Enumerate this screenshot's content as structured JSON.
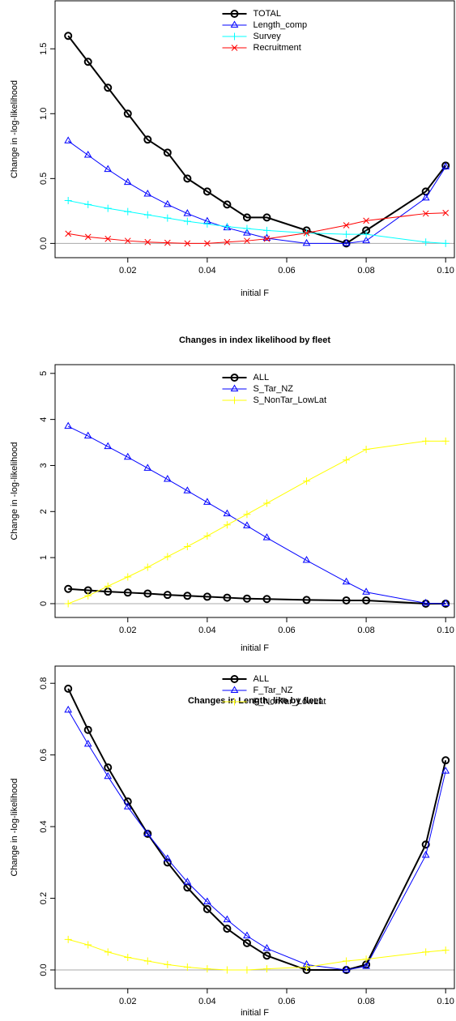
{
  "chart_data": [
    {
      "type": "line",
      "x_label": "initial F",
      "y_label": "Change in -log-likelihood",
      "x": [
        0.005,
        0.01,
        0.015,
        0.02,
        0.025,
        0.03,
        0.035,
        0.04,
        0.045,
        0.05,
        0.055,
        0.065,
        0.075,
        0.08,
        0.095,
        0.1
      ],
      "xlim": [
        0.0017,
        0.1022
      ],
      "xticks": [
        0.02,
        0.04,
        0.06,
        0.08,
        {
          "value": 0.1,
          "label": "0.10"
        }
      ],
      "ylim": [
        -0.11,
        1.87
      ],
      "yticks": [
        {
          "value": 0,
          "label": "0.0"
        },
        0.5,
        {
          "value": 1,
          "label": "1.0"
        },
        1.5
      ],
      "legend": "top",
      "series": [
        {
          "name": "TOTAL",
          "color": "#000000",
          "marker": "circle",
          "line_width": 2,
          "values": [
            1.6,
            1.4,
            1.2,
            1.0,
            0.8,
            0.7,
            0.5,
            0.4,
            0.3,
            0.2,
            0.2,
            0.1,
            0.0,
            0.1,
            0.4,
            0.6
          ]
        },
        {
          "name": "Length_comp",
          "color": "#0000ff",
          "marker": "triangle",
          "line_width": 1,
          "values": [
            0.79,
            0.68,
            0.57,
            0.47,
            0.38,
            0.3,
            0.23,
            0.17,
            0.12,
            0.08,
            0.04,
            0.0,
            0.0,
            0.02,
            0.35,
            0.59
          ]
        },
        {
          "name": "Survey",
          "color": "#00ffff",
          "marker": "plus",
          "line_width": 1,
          "values": [
            0.33,
            0.3,
            0.27,
            0.245,
            0.22,
            0.195,
            0.17,
            0.15,
            0.13,
            0.115,
            0.1,
            0.08,
            0.07,
            0.07,
            0.01,
            0.0
          ]
        },
        {
          "name": "Recruitment",
          "color": "#ff0000",
          "marker": "cross",
          "line_width": 1,
          "values": [
            0.075,
            0.05,
            0.035,
            0.02,
            0.01,
            0.005,
            0.0,
            0.0,
            0.01,
            0.02,
            0.035,
            0.08,
            0.14,
            0.175,
            0.23,
            0.235
          ]
        }
      ]
    },
    {
      "type": "line",
      "title": "Changes in index likelihood by fleet",
      "x_label": "initial F",
      "y_label": "Change in -log-likelihood",
      "x": [
        0.005,
        0.01,
        0.015,
        0.02,
        0.025,
        0.03,
        0.035,
        0.04,
        0.045,
        0.05,
        0.055,
        0.065,
        0.075,
        0.08,
        0.095,
        0.1
      ],
      "xlim": [
        0.0017,
        0.1022
      ],
      "xticks": [
        0.02,
        0.04,
        0.06,
        0.08,
        {
          "value": 0.1,
          "label": "0.10"
        }
      ],
      "ylim": [
        -0.3,
        5.19
      ],
      "yticks": [
        0,
        1,
        2,
        3,
        4,
        5
      ],
      "legend": "top",
      "series": [
        {
          "name": "ALL",
          "color": "#000000",
          "marker": "circle",
          "line_width": 2,
          "values": [
            0.32,
            0.29,
            0.26,
            0.24,
            0.22,
            0.19,
            0.17,
            0.15,
            0.13,
            0.11,
            0.1,
            0.08,
            0.07,
            0.07,
            0.0,
            0.0
          ]
        },
        {
          "name": "S_Tar_NZ",
          "color": "#0000ff",
          "marker": "triangle",
          "line_width": 1,
          "values": [
            3.85,
            3.64,
            3.41,
            3.18,
            2.94,
            2.7,
            2.45,
            2.2,
            1.95,
            1.69,
            1.43,
            0.94,
            0.47,
            0.25,
            0.01,
            0.0
          ]
        },
        {
          "name": "S_NonTar_LowLat",
          "color": "#ffff00",
          "marker": "plus",
          "line_width": 1,
          "values": [
            0.0,
            0.17,
            0.38,
            0.58,
            0.79,
            1.02,
            1.24,
            1.47,
            1.71,
            1.94,
            2.18,
            2.66,
            3.12,
            3.35,
            3.53,
            3.53
          ]
        }
      ]
    },
    {
      "type": "line",
      "title": "Changes in Length_like by fleet",
      "x_label": "initial F",
      "y_label": "Change in -log-likelihood",
      "x": [
        0.005,
        0.01,
        0.015,
        0.02,
        0.025,
        0.03,
        0.035,
        0.04,
        0.045,
        0.05,
        0.055,
        0.065,
        0.075,
        0.08,
        0.095,
        0.1
      ],
      "xlim": [
        0.0017,
        0.1022
      ],
      "xticks": [
        0.02,
        0.04,
        0.06,
        0.08,
        {
          "value": 0.1,
          "label": "0.10"
        }
      ],
      "ylim": [
        -0.052,
        0.848
      ],
      "yticks": [
        {
          "value": 0,
          "label": "0.0"
        },
        0.2,
        0.4,
        0.6,
        0.8
      ],
      "legend": "top",
      "series": [
        {
          "name": "ALL",
          "color": "#000000",
          "marker": "circle",
          "line_width": 2,
          "values": [
            0.785,
            0.67,
            0.565,
            0.47,
            0.38,
            0.3,
            0.23,
            0.17,
            0.115,
            0.075,
            0.04,
            0.0,
            0.0,
            0.015,
            0.35,
            0.585
          ]
        },
        {
          "name": "F_Tar_NZ",
          "color": "#0000ff",
          "marker": "triangle",
          "line_width": 1,
          "values": [
            0.725,
            0.63,
            0.54,
            0.455,
            0.38,
            0.31,
            0.245,
            0.19,
            0.14,
            0.095,
            0.06,
            0.015,
            0.0,
            0.01,
            0.32,
            0.555
          ]
        },
        {
          "name": "F_NonTar_LowLat",
          "color": "#ffff00",
          "marker": "plus",
          "line_width": 1,
          "values": [
            0.085,
            0.07,
            0.05,
            0.035,
            0.025,
            0.015,
            0.008,
            0.003,
            0.0,
            0.0,
            0.003,
            0.008,
            0.025,
            0.03,
            0.05,
            0.055
          ]
        }
      ]
    }
  ]
}
